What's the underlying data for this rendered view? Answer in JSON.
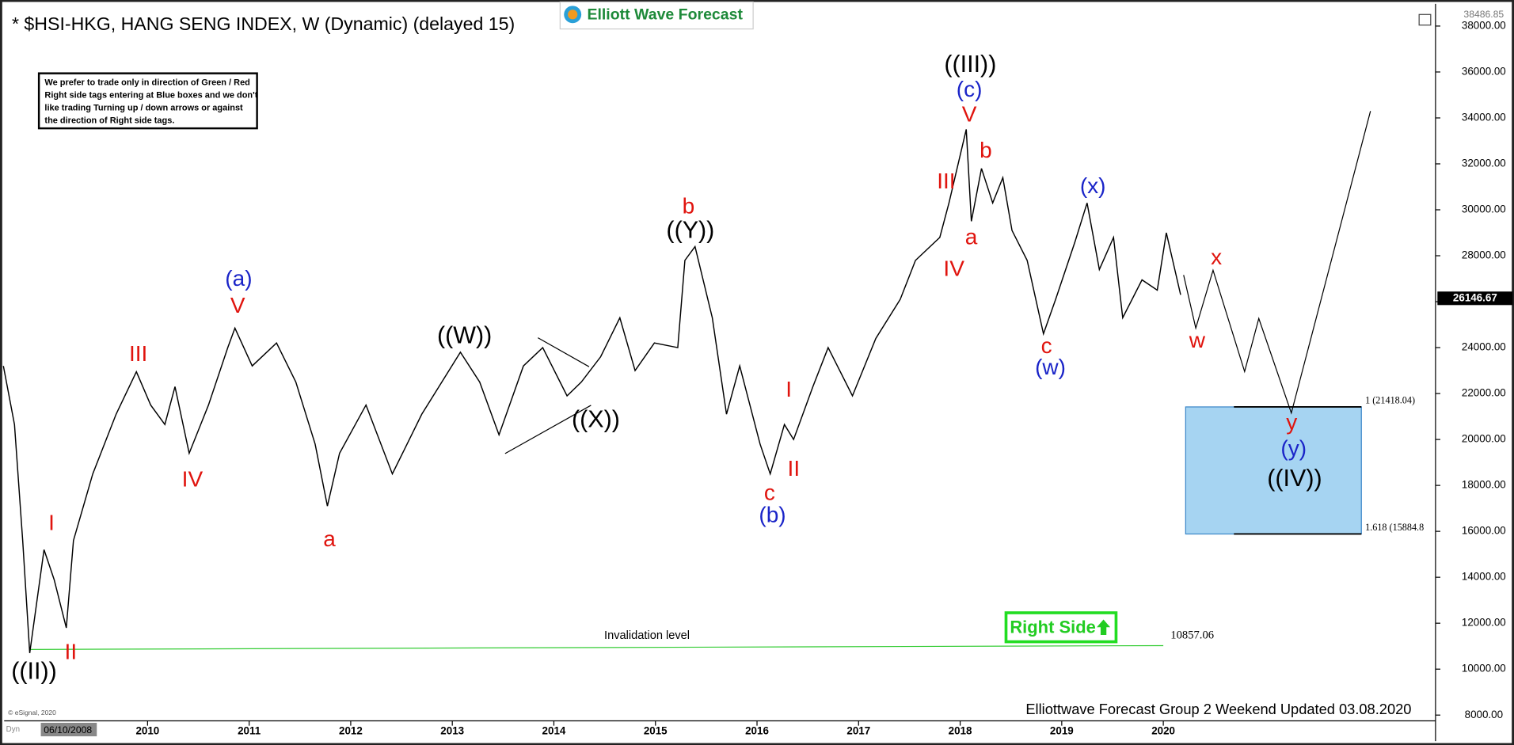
{
  "chart_data": {
    "type": "line",
    "title": "* $HSI-HKG, HANG SENG INDEX, W (Dynamic) (delayed 15)",
    "logo": "Elliott Wave Forecast",
    "note": [
      "We prefer to trade only in direction of Green / Red",
      "Right side tags entering at Blue boxes and we don't",
      "like trading Turning up / down arrows or against",
      "the direction of Right side tags."
    ],
    "footer": "Elliottwave Forecast Group 2 Weekend Updated 03.08.2020",
    "copyright": "© eSignal, 2020",
    "start_date": "06/10/2008",
    "dyn": "Dyn",
    "right_side": "Right Side",
    "xlim": [
      2008.55,
      2022.68
    ],
    "xticks": [
      2010,
      2011,
      2012,
      2013,
      2014,
      2015,
      2016,
      2017,
      2018,
      2019,
      2020
    ],
    "ylim": [
      8000,
      38000
    ],
    "yticks": [
      {
        "value": 8000,
        "label": "8000.00"
      },
      {
        "value": 10000,
        "label": "10000.00"
      },
      {
        "value": 12000,
        "label": "12000.00"
      },
      {
        "value": 14000,
        "label": "14000.00"
      },
      {
        "value": 16000,
        "label": "16000.00"
      },
      {
        "value": 18000,
        "label": "18000.00"
      },
      {
        "value": 20000,
        "label": "20000.00"
      },
      {
        "value": 22000,
        "label": "22000.00"
      },
      {
        "value": 24000,
        "label": "24000.00"
      },
      {
        "value": 26000,
        "label": "26000.00"
      },
      {
        "value": 28000,
        "label": "28000.00"
      },
      {
        "value": 30000,
        "label": "30000.00"
      },
      {
        "value": 32000,
        "label": "32000.00"
      },
      {
        "value": 34000,
        "label": "34000.00"
      },
      {
        "value": 36000,
        "label": "36000.00"
      },
      {
        "value": 38000,
        "label": "38000.00"
      }
    ],
    "high_label": 38486.85,
    "last_price": 26146.67,
    "series": [
      {
        "color": "#000000",
        "x": [
          2008.58,
          2008.69,
          2008.77,
          2008.84,
          2008.98,
          2009.08,
          2009.2,
          2009.27,
          2009.46,
          2009.69,
          2009.89,
          2010.03,
          2010.17,
          2010.27,
          2010.41,
          2010.6,
          2010.79,
          2010.86,
          2011.03,
          2011.27,
          2011.46,
          2011.65,
          2011.77,
          2011.89,
          2012.15,
          2012.41,
          2012.7,
          2013.08,
          2013.27,
          2013.46,
          2013.7,
          2013.89,
          2014.13,
          2014.27,
          2014.46,
          2014.65,
          2014.8,
          2014.99,
          2015.22,
          2015.29,
          2015.39,
          2015.56,
          2015.7,
          2015.83,
          2016.03,
          2016.13,
          2016.27,
          2016.36,
          2016.55,
          2016.7,
          2016.94,
          2017.17,
          2017.41,
          2017.56,
          2017.8,
          2017.89,
          2018.06,
          2018.11,
          2018.21,
          2018.32,
          2018.42,
          2018.51,
          2018.66,
          2018.82,
          2018.94,
          2019.13,
          2019.25,
          2019.37,
          2019.51,
          2019.6,
          2019.79,
          2019.94,
          2020.03,
          2020.17
        ],
        "values": [
          23200,
          20650,
          15600,
          10700,
          15200,
          13900,
          11800,
          15600,
          18500,
          21100,
          22950,
          21500,
          20650,
          22300,
          19400,
          21500,
          24000,
          24850,
          23200,
          24200,
          22500,
          19800,
          17100,
          19400,
          21500,
          18500,
          21100,
          23800,
          22500,
          20200,
          23200,
          24000,
          21900,
          22500,
          23600,
          25300,
          23000,
          24200,
          24000,
          27800,
          28400,
          25300,
          21100,
          23200,
          19800,
          18500,
          20650,
          20000,
          22300,
          24000,
          21900,
          24400,
          26100,
          27800,
          28800,
          30300,
          33500,
          29500,
          31800,
          30300,
          31400,
          29100,
          27800,
          24600,
          26100,
          28600,
          30300,
          27400,
          28800,
          25300,
          26950,
          26500,
          29000,
          26300
        ]
      }
    ],
    "projection": {
      "color": "#000000",
      "x": [
        2020.2,
        2020.32,
        2020.49,
        2020.8,
        2020.94,
        2021.26,
        2022.04
      ],
      "values": [
        27160,
        24850,
        27370,
        22960,
        25270,
        21150,
        34300
      ]
    },
    "target": {
      "x": [
        2020.22,
        2021.95
      ],
      "top": 21418.04,
      "bottom": 15884.8,
      "top_label": "1 (21418.04)",
      "bottom_label": "1.618 (15884.8",
      "color": "#a6d4f2"
    },
    "invalidation": {
      "label": "Invalidation level",
      "value": 10857.06,
      "x": [
        2008.84,
        2020.0
      ],
      "color": "#33cc33"
    },
    "wave_labels": [
      {
        "text": "((II))",
        "color": "#000000"
      },
      {
        "text": "I",
        "color": "#e0140e"
      },
      {
        "text": "II",
        "color": "#e0140e"
      },
      {
        "text": "III",
        "color": "#e0140e"
      },
      {
        "text": "IV",
        "color": "#e0140e"
      },
      {
        "text": "V",
        "color": "#e0140e"
      },
      {
        "text": "(a)",
        "color": "#1a24c8"
      },
      {
        "text": "a",
        "color": "#e0140e"
      },
      {
        "text": "((W))",
        "color": "#000000"
      },
      {
        "text": "((X))",
        "color": "#000000"
      },
      {
        "text": "((Y))",
        "color": "#000000"
      },
      {
        "text": "b",
        "color": "#e0140e"
      },
      {
        "text": "c",
        "color": "#e0140e"
      },
      {
        "text": "(b)",
        "color": "#1a24c8"
      },
      {
        "text": "I",
        "color": "#e0140e"
      },
      {
        "text": "II",
        "color": "#e0140e"
      },
      {
        "text": "III",
        "color": "#e0140e"
      },
      {
        "text": "IV",
        "color": "#e0140e"
      },
      {
        "text": "V",
        "color": "#e0140e"
      },
      {
        "text": "(c)",
        "color": "#1a24c8"
      },
      {
        "text": "((III))",
        "color": "#000000"
      },
      {
        "text": "b",
        "color": "#e0140e"
      },
      {
        "text": "a",
        "color": "#e0140e"
      },
      {
        "text": "c",
        "color": "#e0140e"
      },
      {
        "text": "(w)",
        "color": "#1a24c8"
      },
      {
        "text": "(x)",
        "color": "#1a24c8"
      },
      {
        "text": "x",
        "color": "#e0140e"
      },
      {
        "text": "w",
        "color": "#e0140e"
      },
      {
        "text": "y",
        "color": "#e0140e"
      },
      {
        "text": "(y)",
        "color": "#1a24c8"
      },
      {
        "text": "((IV))",
        "color": "#000000"
      }
    ]
  }
}
